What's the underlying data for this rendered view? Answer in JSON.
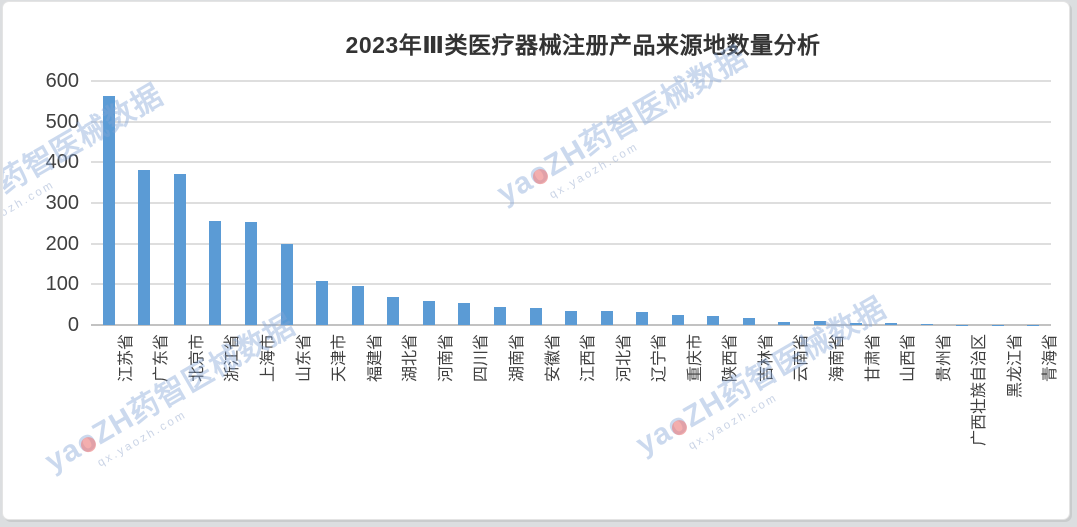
{
  "page": {
    "background": "#dcdee0",
    "card_background": "#ffffff"
  },
  "watermark": {
    "brand_prefix": "ya",
    "brand_o": "o",
    "brand_suffix": "ZH药智医械数据",
    "url_text": "qx.yaozh.com",
    "brand_color": "#82a5d6",
    "dot_color": "#ec8282"
  },
  "chart_data": {
    "type": "bar",
    "title": "2023年Ⅲ类医疗器械注册产品来源地数量分析",
    "categories": [
      "江苏省",
      "广东省",
      "北京市",
      "浙江省",
      "上海市",
      "山东省",
      "天津市",
      "福建省",
      "湖北省",
      "河南省",
      "四川省",
      "湖南省",
      "安徽省",
      "江西省",
      "河北省",
      "辽宁省",
      "重庆市",
      "陕西省",
      "吉林省",
      "云南省",
      "海南省",
      "甘肃省",
      "山西省",
      "贵州省",
      "广西壮族自治区",
      "黑龙江省",
      "青海省"
    ],
    "values": [
      563,
      381,
      372,
      257,
      254,
      199,
      109,
      96,
      68,
      60,
      55,
      44,
      42,
      35,
      35,
      31,
      24,
      21,
      18,
      8,
      9,
      5,
      4,
      2,
      1,
      1,
      1
    ],
    "xlabel": "",
    "ylabel": "",
    "ylim": [
      0,
      600
    ],
    "ytick_interval": 100,
    "yticks": [
      "600",
      "500",
      "400",
      "300",
      "200",
      "100",
      "0"
    ],
    "bar_color": "#5B9BD5",
    "gridline_color": "#dedede",
    "axis_line_color": "#c2c2c2",
    "grid": true,
    "legend_position": "none"
  }
}
